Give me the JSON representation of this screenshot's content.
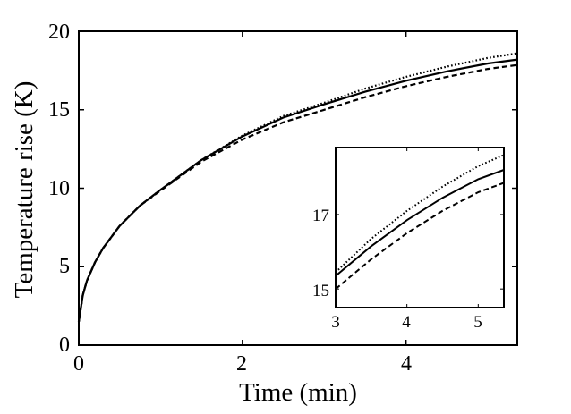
{
  "chart_data": {
    "type": "line",
    "title": "",
    "xlabel": "Time (min)",
    "ylabel": "Temperature rise (K)",
    "xlim": [
      0,
      5.36
    ],
    "ylim": [
      0,
      20
    ],
    "xticks": [
      0,
      2,
      4
    ],
    "yticks": [
      0,
      5,
      10,
      15,
      20
    ],
    "grid": false,
    "legend": null,
    "series": [
      {
        "name": "solid",
        "style": "solid",
        "x": [
          0,
          0.05,
          0.1,
          0.2,
          0.3,
          0.5,
          0.75,
          1.0,
          1.5,
          2.0,
          2.5,
          3.0,
          3.5,
          4.0,
          4.5,
          5.0,
          5.36
        ],
        "y": [
          1.5,
          3.2,
          4.1,
          5.3,
          6.2,
          7.6,
          8.9,
          9.9,
          11.8,
          13.3,
          14.5,
          15.35,
          16.15,
          16.85,
          17.45,
          17.95,
          18.2
        ]
      },
      {
        "name": "dotted",
        "style": "dotted",
        "x": [
          0,
          0.05,
          0.1,
          0.2,
          0.3,
          0.5,
          0.75,
          1.0,
          1.5,
          2.0,
          2.5,
          3.0,
          3.5,
          4.0,
          4.5,
          5.0,
          5.36
        ],
        "y": [
          1.5,
          3.2,
          4.1,
          5.3,
          6.2,
          7.6,
          8.9,
          9.9,
          11.8,
          13.35,
          14.6,
          15.45,
          16.35,
          17.1,
          17.75,
          18.3,
          18.6
        ]
      },
      {
        "name": "dashed",
        "style": "dashed",
        "x": [
          0,
          0.05,
          0.1,
          0.2,
          0.3,
          0.5,
          0.75,
          1.0,
          1.5,
          2.0,
          2.5,
          3.0,
          3.5,
          4.0,
          4.5,
          5.0,
          5.36
        ],
        "y": [
          1.5,
          3.2,
          4.1,
          5.3,
          6.2,
          7.6,
          8.9,
          9.85,
          11.7,
          13.1,
          14.2,
          15.0,
          15.8,
          16.5,
          17.1,
          17.6,
          17.85
        ]
      }
    ],
    "inset": {
      "xlim": [
        3,
        5.36
      ],
      "ylim": [
        14.5,
        18.8
      ],
      "xticks": [
        3,
        4,
        5
      ],
      "yticks": [
        15,
        17
      ]
    }
  },
  "labels": {
    "xlabel": "Time (min)",
    "ylabel": "Temperature rise (K)",
    "yticks": [
      "0",
      "5",
      "10",
      "15",
      "20"
    ],
    "xticks": [
      "0",
      "2",
      "4"
    ],
    "inset_xticks": [
      "3",
      "4",
      "5"
    ],
    "inset_yticks": [
      "15",
      "17"
    ]
  }
}
